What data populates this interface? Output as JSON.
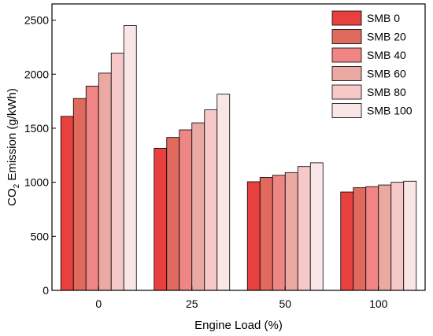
{
  "chart_data": {
    "type": "bar",
    "xlabel": "Engine Load (%)",
    "ylabel": "CO2 Emission (g/kWh)",
    "ylabel_parts": {
      "pre": "CO",
      "sub": "2",
      "post": " Emission (g/kWh)"
    },
    "categories": [
      "0",
      "25",
      "50",
      "100"
    ],
    "ylim": [
      0,
      2650
    ],
    "yticks": [
      0,
      500,
      1000,
      1500,
      2000,
      2500
    ],
    "grid": false,
    "legend_position": "top-right",
    "series": [
      {
        "name": "SMB 0",
        "color": "#e8403f",
        "values": [
          1610,
          1315,
          1005,
          910
        ]
      },
      {
        "name": "SMB 20",
        "color": "#e06a5e",
        "values": [
          1775,
          1415,
          1045,
          950
        ]
      },
      {
        "name": "SMB 40",
        "color": "#f08585",
        "values": [
          1890,
          1485,
          1065,
          960
        ]
      },
      {
        "name": "SMB 60",
        "color": "#eaa9a2",
        "values": [
          2010,
          1550,
          1090,
          975
        ]
      },
      {
        "name": "SMB 80",
        "color": "#f6c8c8",
        "values": [
          2195,
          1670,
          1145,
          1000
        ]
      },
      {
        "name": "SMB 100",
        "color": "#f9e6e6",
        "values": [
          2450,
          1815,
          1180,
          1010
        ]
      }
    ]
  }
}
